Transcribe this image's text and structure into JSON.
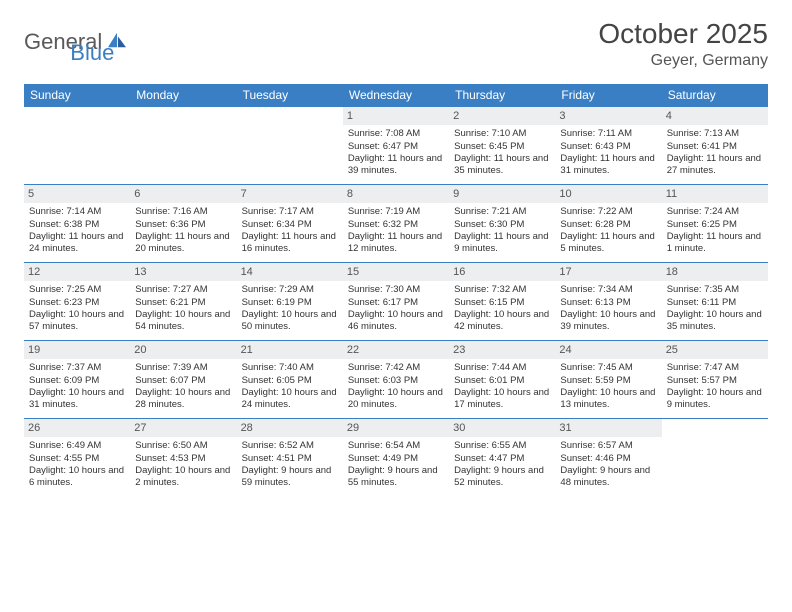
{
  "logo": {
    "part1": "General",
    "part2": "Blue"
  },
  "header": {
    "title": "October 2025",
    "location": "Geyer, Germany"
  },
  "colors": {
    "header_bg": "#3a7fc4",
    "header_text": "#ffffff",
    "daynum_bg": "#eceef0",
    "daynum_text": "#555555",
    "body_text": "#333333",
    "row_border": "#3a7fc4",
    "page_bg": "#ffffff"
  },
  "typography": {
    "title_fontsize_pt": 21,
    "location_fontsize_pt": 12,
    "th_fontsize_pt": 9,
    "cell_fontsize_pt": 7,
    "daynum_fontsize_pt": 8
  },
  "layout": {
    "columns": 7,
    "rows": 5,
    "leading_blanks": 3
  },
  "weekdays": [
    "Sunday",
    "Monday",
    "Tuesday",
    "Wednesday",
    "Thursday",
    "Friday",
    "Saturday"
  ],
  "days": [
    {
      "n": 1,
      "sunrise": "7:08 AM",
      "sunset": "6:47 PM",
      "daylight": "11 hours and 39 minutes."
    },
    {
      "n": 2,
      "sunrise": "7:10 AM",
      "sunset": "6:45 PM",
      "daylight": "11 hours and 35 minutes."
    },
    {
      "n": 3,
      "sunrise": "7:11 AM",
      "sunset": "6:43 PM",
      "daylight": "11 hours and 31 minutes."
    },
    {
      "n": 4,
      "sunrise": "7:13 AM",
      "sunset": "6:41 PM",
      "daylight": "11 hours and 27 minutes."
    },
    {
      "n": 5,
      "sunrise": "7:14 AM",
      "sunset": "6:38 PM",
      "daylight": "11 hours and 24 minutes."
    },
    {
      "n": 6,
      "sunrise": "7:16 AM",
      "sunset": "6:36 PM",
      "daylight": "11 hours and 20 minutes."
    },
    {
      "n": 7,
      "sunrise": "7:17 AM",
      "sunset": "6:34 PM",
      "daylight": "11 hours and 16 minutes."
    },
    {
      "n": 8,
      "sunrise": "7:19 AM",
      "sunset": "6:32 PM",
      "daylight": "11 hours and 12 minutes."
    },
    {
      "n": 9,
      "sunrise": "7:21 AM",
      "sunset": "6:30 PM",
      "daylight": "11 hours and 9 minutes."
    },
    {
      "n": 10,
      "sunrise": "7:22 AM",
      "sunset": "6:28 PM",
      "daylight": "11 hours and 5 minutes."
    },
    {
      "n": 11,
      "sunrise": "7:24 AM",
      "sunset": "6:25 PM",
      "daylight": "11 hours and 1 minute."
    },
    {
      "n": 12,
      "sunrise": "7:25 AM",
      "sunset": "6:23 PM",
      "daylight": "10 hours and 57 minutes."
    },
    {
      "n": 13,
      "sunrise": "7:27 AM",
      "sunset": "6:21 PM",
      "daylight": "10 hours and 54 minutes."
    },
    {
      "n": 14,
      "sunrise": "7:29 AM",
      "sunset": "6:19 PM",
      "daylight": "10 hours and 50 minutes."
    },
    {
      "n": 15,
      "sunrise": "7:30 AM",
      "sunset": "6:17 PM",
      "daylight": "10 hours and 46 minutes."
    },
    {
      "n": 16,
      "sunrise": "7:32 AM",
      "sunset": "6:15 PM",
      "daylight": "10 hours and 42 minutes."
    },
    {
      "n": 17,
      "sunrise": "7:34 AM",
      "sunset": "6:13 PM",
      "daylight": "10 hours and 39 minutes."
    },
    {
      "n": 18,
      "sunrise": "7:35 AM",
      "sunset": "6:11 PM",
      "daylight": "10 hours and 35 minutes."
    },
    {
      "n": 19,
      "sunrise": "7:37 AM",
      "sunset": "6:09 PM",
      "daylight": "10 hours and 31 minutes."
    },
    {
      "n": 20,
      "sunrise": "7:39 AM",
      "sunset": "6:07 PM",
      "daylight": "10 hours and 28 minutes."
    },
    {
      "n": 21,
      "sunrise": "7:40 AM",
      "sunset": "6:05 PM",
      "daylight": "10 hours and 24 minutes."
    },
    {
      "n": 22,
      "sunrise": "7:42 AM",
      "sunset": "6:03 PM",
      "daylight": "10 hours and 20 minutes."
    },
    {
      "n": 23,
      "sunrise": "7:44 AM",
      "sunset": "6:01 PM",
      "daylight": "10 hours and 17 minutes."
    },
    {
      "n": 24,
      "sunrise": "7:45 AM",
      "sunset": "5:59 PM",
      "daylight": "10 hours and 13 minutes."
    },
    {
      "n": 25,
      "sunrise": "7:47 AM",
      "sunset": "5:57 PM",
      "daylight": "10 hours and 9 minutes."
    },
    {
      "n": 26,
      "sunrise": "6:49 AM",
      "sunset": "4:55 PM",
      "daylight": "10 hours and 6 minutes."
    },
    {
      "n": 27,
      "sunrise": "6:50 AM",
      "sunset": "4:53 PM",
      "daylight": "10 hours and 2 minutes."
    },
    {
      "n": 28,
      "sunrise": "6:52 AM",
      "sunset": "4:51 PM",
      "daylight": "9 hours and 59 minutes."
    },
    {
      "n": 29,
      "sunrise": "6:54 AM",
      "sunset": "4:49 PM",
      "daylight": "9 hours and 55 minutes."
    },
    {
      "n": 30,
      "sunrise": "6:55 AM",
      "sunset": "4:47 PM",
      "daylight": "9 hours and 52 minutes."
    },
    {
      "n": 31,
      "sunrise": "6:57 AM",
      "sunset": "4:46 PM",
      "daylight": "9 hours and 48 minutes."
    }
  ],
  "labels": {
    "sunrise": "Sunrise:",
    "sunset": "Sunset:",
    "daylight": "Daylight:"
  }
}
